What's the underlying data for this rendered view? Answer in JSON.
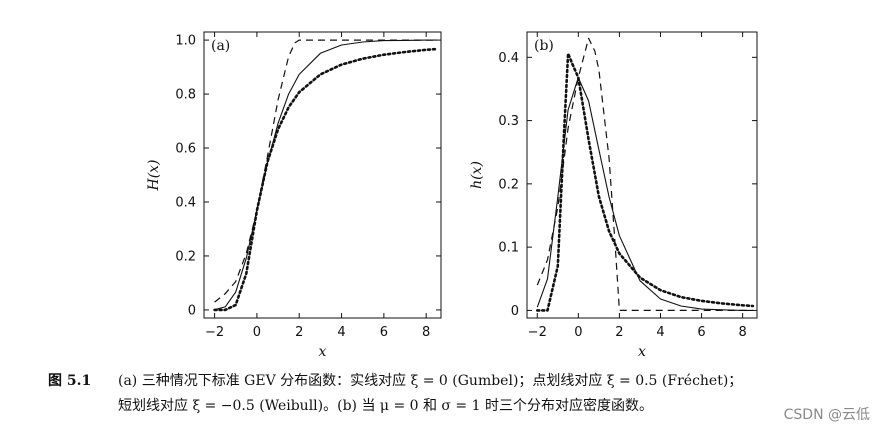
{
  "chart_data": [
    {
      "type": "line",
      "panel_label": "(a)",
      "xlabel": "x",
      "ylabel": "H(x)",
      "xlim": [
        -2.5,
        8.7
      ],
      "ylim": [
        -0.03,
        1.03
      ],
      "xticks": [
        -2,
        0,
        2,
        4,
        6,
        8
      ],
      "yticks": [
        0,
        0.2,
        0.4,
        0.6,
        0.8,
        1.0
      ],
      "ytick_labels": [
        "0",
        "0.2",
        "0.4",
        "0.6",
        "0.8",
        "1.0"
      ],
      "grid": false,
      "series": [
        {
          "style": "solid",
          "x": [
            -2,
            -1.5,
            -1,
            -0.5,
            0,
            0.5,
            1,
            1.5,
            2,
            3,
            4,
            5,
            6,
            7,
            8,
            8.5
          ],
          "y": [
            0.001,
            0.011,
            0.066,
            0.192,
            0.368,
            0.545,
            0.692,
            0.8,
            0.873,
            0.951,
            0.982,
            0.993,
            0.998,
            0.999,
            1.0,
            1.0
          ]
        },
        {
          "style": "dotted",
          "x": [
            -2,
            -1.5,
            -1,
            -0.5,
            0,
            0.5,
            1,
            1.5,
            2,
            3,
            4,
            5,
            6,
            7,
            8,
            8.5
          ],
          "y": [
            0.0,
            0.0,
            0.018,
            0.135,
            0.368,
            0.549,
            0.67,
            0.751,
            0.807,
            0.873,
            0.909,
            0.931,
            0.946,
            0.956,
            0.964,
            0.967
          ]
        },
        {
          "style": "dashed",
          "x": [
            -2,
            -1.5,
            -1,
            -0.5,
            0,
            0.5,
            1,
            1.5,
            1.8,
            2,
            3,
            4,
            5,
            6,
            7,
            8,
            8.5
          ],
          "y": [
            0.029,
            0.06,
            0.105,
            0.209,
            0.368,
            0.57,
            0.779,
            0.939,
            0.99,
            1.0,
            1.0,
            1.0,
            1.0,
            1.0,
            1.0,
            1.0,
            1.0
          ]
        }
      ]
    },
    {
      "type": "line",
      "panel_label": "(b)",
      "xlabel": "x",
      "ylabel": "h(x)",
      "xlim": [
        -2.5,
        8.7
      ],
      "ylim": [
        -0.012,
        0.44
      ],
      "xticks": [
        -2,
        0,
        2,
        4,
        6,
        8
      ],
      "yticks": [
        0,
        0.1,
        0.2,
        0.3,
        0.4
      ],
      "ytick_labels": [
        "0",
        "0.1",
        "0.2",
        "0.3",
        "0.4"
      ],
      "grid": false,
      "series": [
        {
          "style": "solid",
          "x": [
            -2,
            -1.5,
            -1,
            -0.5,
            0,
            0.5,
            1,
            1.5,
            2,
            3,
            4,
            5,
            6,
            7,
            8,
            8.5
          ],
          "y": [
            0.005,
            0.05,
            0.179,
            0.317,
            0.368,
            0.331,
            0.254,
            0.179,
            0.118,
            0.047,
            0.018,
            0.007,
            0.002,
            0.001,
            0.0,
            0.0
          ]
        },
        {
          "style": "dotted",
          "x": [
            -2,
            -1.5,
            -1,
            -0.7,
            -0.5,
            -0.3,
            0,
            0.5,
            1,
            1.5,
            2,
            3,
            4,
            5,
            6,
            7,
            8,
            8.5
          ],
          "y": [
            0.0,
            0.0,
            0.07,
            0.28,
            0.406,
            0.39,
            0.368,
            0.27,
            0.18,
            0.125,
            0.09,
            0.052,
            0.032,
            0.021,
            0.015,
            0.011,
            0.008,
            0.007
          ]
        },
        {
          "style": "dashed",
          "x": [
            -2,
            -1.5,
            -1,
            -0.5,
            0,
            0.5,
            0.8,
            1,
            1.5,
            1.8,
            2,
            3,
            4,
            5,
            6,
            7,
            8,
            8.5
          ],
          "y": [
            0.04,
            0.08,
            0.163,
            0.288,
            0.368,
            0.43,
            0.41,
            0.38,
            0.24,
            0.1,
            0.0,
            0.0,
            0.0,
            0.0,
            0.0,
            0.0,
            0.0,
            0.0
          ]
        }
      ]
    }
  ],
  "caption": {
    "figure_number": "图 5.1",
    "line1": "(a) 三种情况下标准 GEV 分布函数：实线对应 ξ = 0 (Gumbel)；点划线对应 ξ = 0.5 (Fréchet)；",
    "line2": "短划线对应 ξ = −0.5 (Weibull)。(b) 当 μ = 0 和 σ = 1 时三个分布对应密度函数。"
  },
  "watermark": "CSDN @云低"
}
